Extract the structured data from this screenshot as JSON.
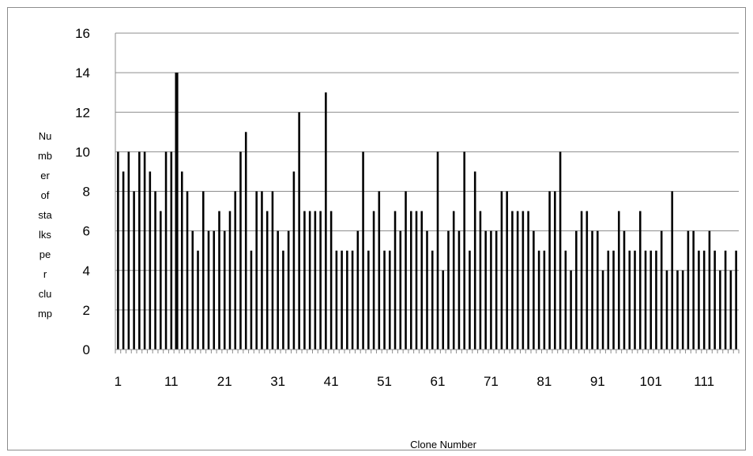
{
  "chart_data": {
    "type": "bar",
    "title": "",
    "xlabel": "Clone Number",
    "ylabel": "Number of stalks per clump",
    "ylabel_lines": [
      "Nu",
      "mb",
      "er",
      "of",
      "sta",
      "lks",
      "pe",
      "r",
      "clu",
      "mp"
    ],
    "ylim": [
      0,
      16
    ],
    "y_ticks": [
      "0",
      "2",
      "4",
      "6",
      "8",
      "10",
      "12",
      "14",
      "16"
    ],
    "x_tick_labels": [
      "1",
      "11",
      "21",
      "31",
      "41",
      "51",
      "61",
      "71",
      "81",
      "91",
      "101",
      "111"
    ],
    "grid": true,
    "bar_color": "#000000",
    "categories": [
      1,
      2,
      3,
      4,
      5,
      6,
      7,
      8,
      9,
      10,
      11,
      12,
      13,
      14,
      15,
      16,
      17,
      18,
      19,
      20,
      21,
      22,
      23,
      24,
      25,
      26,
      27,
      28,
      29,
      30,
      31,
      32,
      33,
      34,
      35,
      36,
      37,
      38,
      39,
      40,
      41,
      42,
      43,
      44,
      45,
      46,
      47,
      48,
      49,
      50,
      51,
      52,
      53,
      54,
      55,
      56,
      57,
      58,
      59,
      60,
      61,
      62,
      63,
      64,
      65,
      66,
      67,
      68,
      69,
      70,
      71,
      72,
      73,
      74,
      75,
      76,
      77,
      78,
      79,
      80,
      81,
      82,
      83,
      84,
      85,
      86,
      87,
      88,
      89,
      90,
      91,
      92,
      93,
      94,
      95,
      96,
      97,
      98,
      99,
      100,
      101,
      102,
      103,
      104,
      105,
      106,
      107,
      108,
      109,
      110,
      111,
      112,
      113,
      114,
      115,
      116,
      117
    ],
    "values": [
      10,
      9,
      10,
      8,
      10,
      10,
      9,
      8,
      7,
      10,
      10,
      14,
      9,
      8,
      6,
      5,
      8,
      6,
      6,
      7,
      6,
      7,
      8,
      10,
      11,
      5,
      8,
      8,
      7,
      8,
      6,
      5,
      6,
      9,
      12,
      7,
      7,
      7,
      7,
      13,
      7,
      5,
      5,
      5,
      5,
      6,
      10,
      5,
      7,
      8,
      5,
      5,
      7,
      6,
      8,
      7,
      7,
      7,
      6,
      5,
      10,
      4,
      6,
      7,
      6,
      10,
      5,
      9,
      7,
      6,
      6,
      6,
      8,
      8,
      7,
      7,
      7,
      7,
      6,
      5,
      5,
      8,
      8,
      10,
      5,
      4,
      6,
      7,
      7,
      6,
      6,
      4,
      5,
      5,
      7,
      6,
      5,
      5,
      7,
      5,
      5,
      5,
      6,
      4,
      8,
      4,
      4,
      6,
      6,
      5,
      5,
      6,
      5,
      4,
      5,
      4,
      5
    ]
  }
}
